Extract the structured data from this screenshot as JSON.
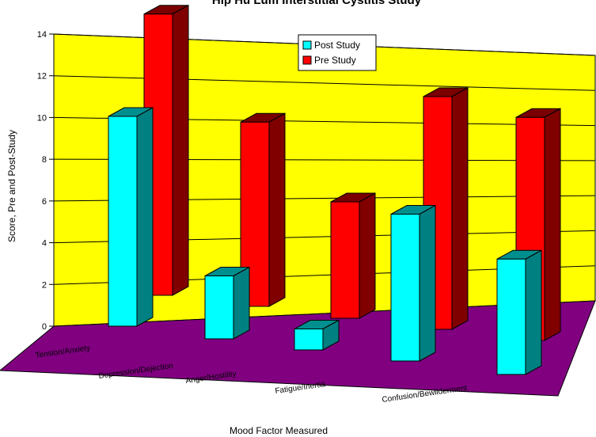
{
  "chart_data": {
    "type": "bar",
    "title": "Hip Hu Lum Interstitial Cystitis Study",
    "xlabel": "Mood Factor Measured",
    "ylabel": "Score, Pre and Post-Study",
    "categories": [
      "Tension/Anxiety",
      "Depression/Dejection",
      "Anger/Hostility",
      "Fatigue/Inertia",
      "Confusion/Bewilderment"
    ],
    "series": [
      {
        "name": "Post Study",
        "values": [
          10,
          3,
          1,
          7,
          5.5
        ]
      },
      {
        "name": "Pre Study",
        "values": [
          14.5,
          9.5,
          6,
          12,
          11.5
        ]
      }
    ],
    "ylim": [
      0,
      14
    ],
    "yticks": [
      0,
      2,
      4,
      6,
      8,
      10,
      12,
      14
    ],
    "grid": true,
    "legend": "top-center",
    "colors": {
      "post_face": "#00ffff",
      "post_side": "#008080",
      "post_top": "#008f8f",
      "pre_face": "#ff0000",
      "pre_side": "#800000",
      "pre_top": "#7a0000",
      "wall": "#ffff00",
      "floor": "#800080"
    }
  }
}
